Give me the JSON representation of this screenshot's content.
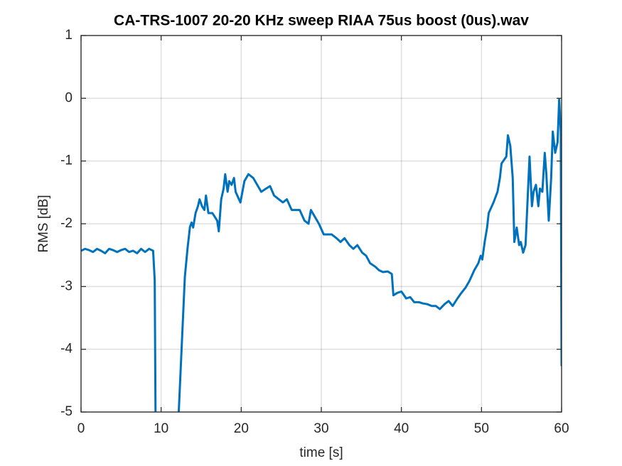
{
  "chart_data": {
    "type": "line",
    "title": "CA-TRS-1007 20-20 KHz sweep RIAA 75us boost (0us).wav",
    "xlabel": "time [s]",
    "ylabel": "RMS [dB]",
    "xlim": [
      0,
      60
    ],
    "xticks": [
      0,
      10,
      20,
      30,
      40,
      50,
      60
    ],
    "ylim": [
      -5,
      1
    ],
    "yticks": [
      -5,
      -4,
      -3,
      -2,
      -1,
      0,
      1
    ],
    "grid": true,
    "series": [
      {
        "color": "#0072bd",
        "x": [
          0,
          0.5,
          1,
          1.5,
          2,
          2.5,
          3,
          3.5,
          4,
          4.5,
          5,
          5.5,
          6,
          6.5,
          7,
          7.5,
          8,
          8.5,
          9,
          9.2,
          9.3,
          10.5,
          12.2,
          12.96,
          13.3,
          13.6,
          13.8,
          14.0,
          14.3,
          14.6,
          14.8,
          15.1,
          15.4,
          15.6,
          15.9,
          16.4,
          17.0,
          17.2,
          17.5,
          17.8,
          18.0,
          18.3,
          18.5,
          18.8,
          19.1,
          19.3,
          19.9,
          20.4,
          20.9,
          21.5,
          22.0,
          22.5,
          23.1,
          23.6,
          24.1,
          24.7,
          25.2,
          25.7,
          26.3,
          26.8,
          27.3,
          27.9,
          28.4,
          28.7,
          29.2,
          29.7,
          30.3,
          30.8,
          31.3,
          31.9,
          32.4,
          32.9,
          33.5,
          34.0,
          34.5,
          35.1,
          35.6,
          36.1,
          36.7,
          37.2,
          37.7,
          38.3,
          38.8,
          39.0,
          39.5,
          40.0,
          40.6,
          41.1,
          41.6,
          42.2,
          42.7,
          43.2,
          43.8,
          44.3,
          44.8,
          45.4,
          45.9,
          46.4,
          47.0,
          47.5,
          48.0,
          48.5,
          49.1,
          49.6,
          49.9,
          50.1,
          50.4,
          50.7,
          50.9,
          51.5,
          52.0,
          52.3,
          52.5,
          53.1,
          53.3,
          53.6,
          53.9,
          54.1,
          54.4,
          54.7,
          54.9,
          55.2,
          55.5,
          55.7,
          56.0,
          56.3,
          56.5,
          56.8,
          57.1,
          57.3,
          57.6,
          57.9,
          58.1,
          58.4,
          58.7,
          58.9,
          59.2,
          59.5,
          59.7,
          59.9,
          60.0
        ],
        "values": [
          -2.43,
          -2.4,
          -2.42,
          -2.45,
          -2.4,
          -2.43,
          -2.47,
          -2.4,
          -2.42,
          -2.45,
          -2.42,
          -2.4,
          -2.45,
          -2.43,
          -2.47,
          -2.4,
          -2.45,
          -2.4,
          -2.43,
          -2.9,
          -5,
          null,
          -5,
          -2.85,
          -2.39,
          -2.05,
          -1.98,
          -2.06,
          -1.83,
          -1.72,
          -1.61,
          -1.72,
          -1.78,
          -1.55,
          -1.83,
          -1.83,
          -1.95,
          -2.12,
          -1.61,
          -1.44,
          -1.21,
          -1.49,
          -1.32,
          -1.38,
          -1.27,
          -1.49,
          -1.66,
          -1.32,
          -1.21,
          -1.27,
          -1.38,
          -1.49,
          -1.44,
          -1.4,
          -1.55,
          -1.61,
          -1.66,
          -1.61,
          -1.78,
          -1.78,
          -1.78,
          -1.95,
          -2.0,
          -1.78,
          -1.89,
          -2.0,
          -2.17,
          -2.17,
          -2.17,
          -2.23,
          -2.29,
          -2.23,
          -2.34,
          -2.4,
          -2.34,
          -2.46,
          -2.51,
          -2.63,
          -2.68,
          -2.74,
          -2.77,
          -2.76,
          -2.8,
          -3.14,
          -3.1,
          -3.08,
          -3.19,
          -3.17,
          -3.25,
          -3.25,
          -3.27,
          -3.28,
          -3.31,
          -3.31,
          -3.36,
          -3.28,
          -3.23,
          -3.31,
          -3.19,
          -3.1,
          -3.02,
          -2.91,
          -2.74,
          -2.63,
          -2.51,
          -2.57,
          -2.29,
          -2.06,
          -1.83,
          -1.66,
          -1.49,
          -1.27,
          -1.04,
          -0.93,
          -0.59,
          -0.76,
          -1.27,
          -2.29,
          -2.06,
          -2.34,
          -2.29,
          -2.46,
          -2.34,
          -1.78,
          -0.93,
          -1.72,
          -1.49,
          -1.38,
          -1.72,
          -1.44,
          -1.49,
          -0.87,
          -1.21,
          -1.95,
          -1.27,
          -0.53,
          -0.87,
          -0.7,
          -0.02,
          -0.53,
          -4.27
        ]
      }
    ]
  }
}
